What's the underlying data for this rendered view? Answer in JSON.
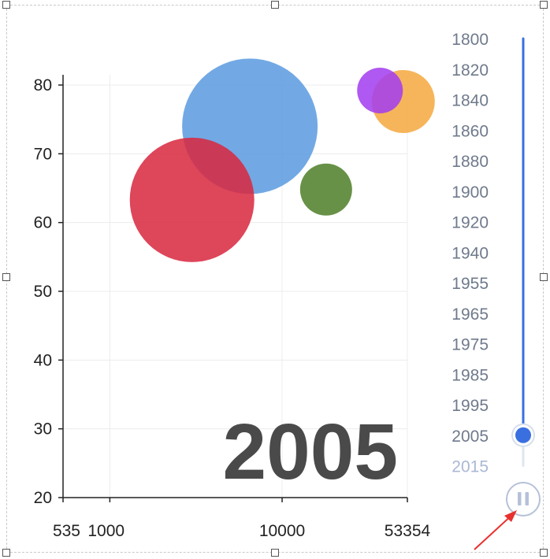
{
  "chart_data": {
    "type": "scatter",
    "variant": "bubble",
    "x_scale": "log",
    "xlim": [
      535,
      53354
    ],
    "ylim": [
      20,
      80
    ],
    "x_ticks": [
      "535",
      "1000",
      "10000",
      "53354"
    ],
    "y_ticks": [
      "20",
      "30",
      "40",
      "50",
      "60",
      "70",
      "80"
    ],
    "grid": true,
    "current_year": "2005",
    "points": [
      {
        "x": 6500,
        "y": 74.0,
        "size": 86,
        "color": "#5b9bdf"
      },
      {
        "x": 3000,
        "y": 63.3,
        "size": 79,
        "color": "#d9283f"
      },
      {
        "x": 18000,
        "y": 64.8,
        "size": 33,
        "color": "#4e7f29"
      },
      {
        "x": 50500,
        "y": 77.6,
        "size": 40,
        "color": "#f4a940"
      },
      {
        "x": 37000,
        "y": 79.2,
        "size": 29,
        "color": "#a23cf0"
      }
    ]
  },
  "timeline": {
    "years": [
      "1800",
      "1820",
      "1840",
      "1860",
      "1880",
      "1900",
      "1920",
      "1940",
      "1955",
      "1965",
      "1975",
      "1985",
      "1995",
      "2005",
      "2015"
    ],
    "current_index": 13,
    "track_color": "#3a6fe0",
    "future_color": "#aab8d4",
    "pause_icon": "pause-icon",
    "playing": true
  },
  "colors": {
    "annotation_arrow": "#e8312f",
    "grid": "#ececec",
    "axis": "#222222"
  }
}
